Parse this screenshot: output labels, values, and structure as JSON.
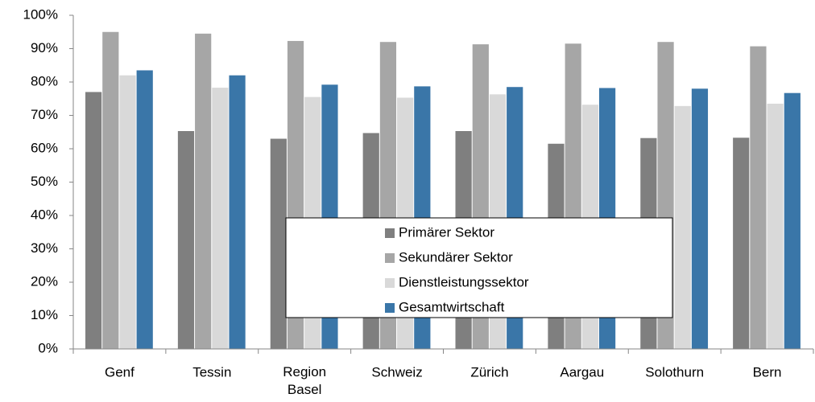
{
  "chart_data": {
    "type": "bar",
    "categories": [
      "Genf",
      "Tessin",
      "Region Basel",
      "Schweiz",
      "Zürich",
      "Aargau",
      "Solothurn",
      "Bern"
    ],
    "series": [
      {
        "name": "Primärer Sektor",
        "color": "#7f7f7f",
        "values": [
          77,
          65.3,
          63,
          64.7,
          65.3,
          61.5,
          63.2,
          63.3
        ]
      },
      {
        "name": "Sekundärer Sektor",
        "color": "#a6a6a6",
        "values": [
          95,
          94.5,
          92.3,
          92,
          91.3,
          91.5,
          92,
          90.7
        ]
      },
      {
        "name": "Dienstleistungssektor",
        "color": "#d9d9d9",
        "values": [
          82,
          78.3,
          75.5,
          75.3,
          76.3,
          73.2,
          72.8,
          73.5
        ]
      },
      {
        "name": "Gesamtwirtschaft",
        "color": "#3a76a8",
        "values": [
          83.5,
          82,
          79.2,
          78.7,
          78.5,
          78.2,
          78,
          76.7
        ]
      }
    ],
    "ylim": [
      0,
      100
    ],
    "yticks": [
      {
        "value": 0,
        "label": "0%"
      },
      {
        "value": 10,
        "label": "10%"
      },
      {
        "value": 20,
        "label": "20%"
      },
      {
        "value": 30,
        "label": "30%"
      },
      {
        "value": 40,
        "label": "40%"
      },
      {
        "value": 50,
        "label": "50%"
      },
      {
        "value": 60,
        "label": "60%"
      },
      {
        "value": 70,
        "label": "70%"
      },
      {
        "value": 80,
        "label": "80%"
      },
      {
        "value": 90,
        "label": "90%"
      },
      {
        "value": 100,
        "label": "100%"
      }
    ],
    "grid": false,
    "legend": "center"
  }
}
